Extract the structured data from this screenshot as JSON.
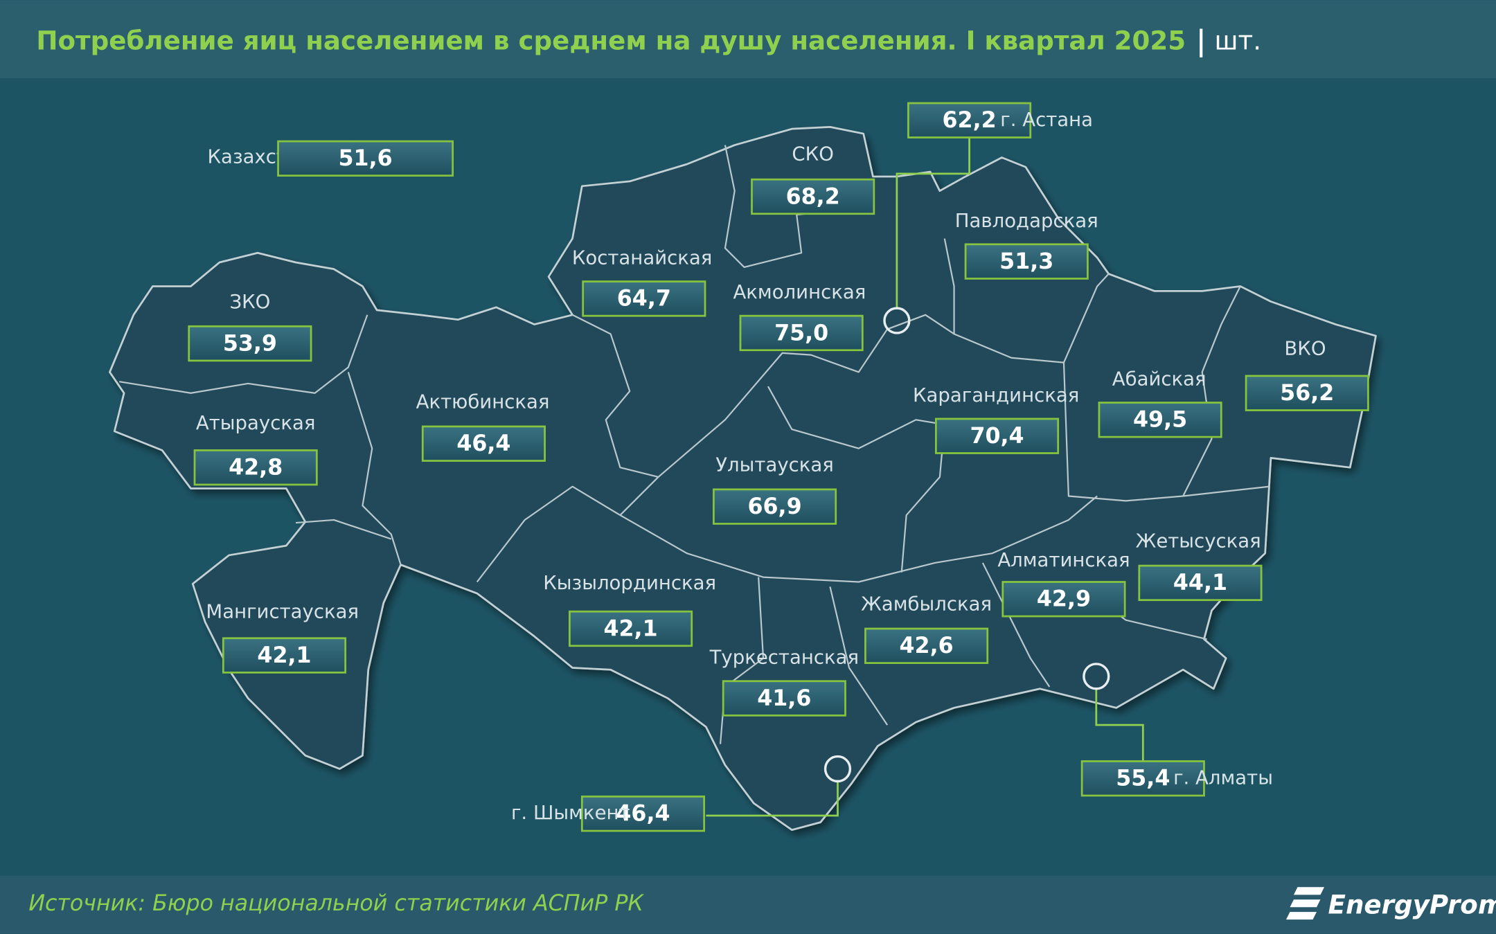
{
  "header": {
    "title": "Потребление яиц населением в среднем на душу населения. I квартал 2025",
    "unit": "шт."
  },
  "country": {
    "label": "Казахстан",
    "value": "51,6"
  },
  "regions": [
    {
      "name": "СКО",
      "value": "68,2"
    },
    {
      "name": "Павлодарская",
      "value": "51,3"
    },
    {
      "name": "Костанайская",
      "value": "64,7"
    },
    {
      "name": "Акмолинская",
      "value": "75,0"
    },
    {
      "name": "ЗКО",
      "value": "53,9"
    },
    {
      "name": "ВКО",
      "value": "56,2"
    },
    {
      "name": "Абайская",
      "value": "49,5"
    },
    {
      "name": "Карагандинская",
      "value": "70,4"
    },
    {
      "name": "Актюбинская",
      "value": "46,4"
    },
    {
      "name": "Атырауская",
      "value": "42,8"
    },
    {
      "name": "Улытауская",
      "value": "66,9"
    },
    {
      "name": "Жетысуская",
      "value": "44,1"
    },
    {
      "name": "Алматинская",
      "value": "42,9"
    },
    {
      "name": "Кызылординская",
      "value": "42,1"
    },
    {
      "name": "Мангистауская",
      "value": "42,1"
    },
    {
      "name": "Жамбылская",
      "value": "42,6"
    },
    {
      "name": "Туркестанская",
      "value": "41,6"
    }
  ],
  "cities": [
    {
      "name": "г. Астана",
      "value": "62,2"
    },
    {
      "name": "г. Алматы",
      "value": "55,4"
    },
    {
      "name": "г. Шымкент",
      "value": "46,4"
    }
  ],
  "footer": {
    "source": "Источник: Бюро национальной статистики АСПиР РК",
    "logo": "EnergyProm"
  }
}
